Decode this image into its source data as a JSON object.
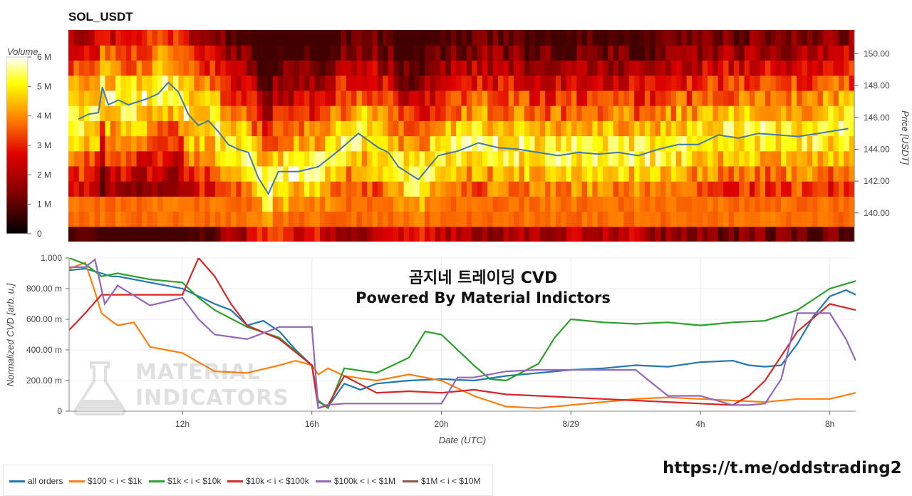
{
  "title": "SOL_USDT",
  "overlay": {
    "line1": "곰지네 트레이딩 CVD",
    "line2": "Powered By Material Indictors"
  },
  "watermark": {
    "line1": "MATERIAL",
    "line2": "INDICATORS"
  },
  "url": "https://t.me/oddstrading2",
  "colorbar": {
    "label": "Volume",
    "ticks": [
      "0",
      "1 M",
      "2 M",
      "3 M",
      "4 M",
      "5 M",
      "6 M"
    ],
    "range": [
      0,
      6
    ]
  },
  "colors": {
    "all_orders": "#1f77b4",
    "r100_1k": "#ff7f0e",
    "r1k_10k": "#2ca02c",
    "r10k_100k": "#d62728",
    "r100k_1m": "#9467bd",
    "r1m_10m": "#8c564b"
  },
  "legend": [
    {
      "key": "all_orders",
      "label": "all orders"
    },
    {
      "key": "r100_1k",
      "label": "$100 < i < $1k"
    },
    {
      "key": "r1k_10k",
      "label": "$1k < i < $10k"
    },
    {
      "key": "r10k_100k",
      "label": "$10k < i < $100k"
    },
    {
      "key": "r100k_1m",
      "label": "$100k < i < $1M"
    },
    {
      "key": "r1m_10m",
      "label": "$1M < i < $10M"
    }
  ],
  "chart_data": [
    {
      "type": "heatmap",
      "title": "SOL_USDT",
      "ylabel": "Price [USDT]",
      "ylim": [
        138.2,
        151.5
      ],
      "yticks": [
        "140.00",
        "142.00",
        "144.00",
        "146.00",
        "148.00",
        "150.00"
      ],
      "ytick_values": [
        140,
        142,
        144,
        146,
        148,
        150
      ],
      "price_line": {
        "color": "#4477aa",
        "x_hours": [
          0,
          0.5,
          1,
          1.2,
          1.5,
          2,
          2.5,
          3,
          3.5,
          4,
          4.5,
          5,
          5.5,
          6,
          6.5,
          7,
          7.5,
          8,
          8.5,
          9,
          9.5,
          10,
          11,
          12,
          13,
          14,
          15,
          15.5,
          16,
          17,
          18,
          19,
          20,
          21,
          22,
          23,
          24,
          25,
          26,
          27,
          28,
          29,
          30,
          31,
          32,
          33,
          34,
          35,
          36,
          37,
          38,
          38.5
        ],
        "y": [
          145.9,
          146.2,
          146.3,
          147.9,
          146.8,
          147.1,
          146.8,
          147.0,
          147.2,
          147.5,
          148.2,
          147.6,
          146.2,
          145.5,
          145.8,
          145.1,
          144.3,
          144.0,
          143.8,
          142.2,
          141.2,
          142.6,
          142.6,
          142.9,
          143.9,
          145.0,
          144.1,
          143.8,
          142.9,
          142.1,
          143.6,
          143.9,
          144.4,
          144.1,
          144.0,
          143.8,
          143.6,
          143.8,
          143.7,
          143.8,
          143.6,
          144.0,
          144.3,
          144.3,
          144.9,
          144.7,
          145.0,
          144.9,
          144.8,
          145.0,
          145.2,
          145.3
        ]
      }
    },
    {
      "type": "line",
      "xlabel": "Date (UTC)",
      "ylabel": "Normalized CVD [arb. u.]",
      "ylim": [
        0,
        1000
      ],
      "yticks": [
        "0",
        "200.00 m",
        "400.00 m",
        "600.00 m",
        "800.00 m",
        "1.000"
      ],
      "ytick_values": [
        0,
        200,
        400,
        600,
        800,
        1000
      ],
      "xticks": [
        "12h",
        "16h",
        "20h",
        "8/29",
        "4h",
        "8h"
      ],
      "xtick_hours": [
        3,
        7,
        11,
        15,
        19,
        23
      ],
      "xlim_hours": [
        -0.5,
        23.8
      ],
      "series": [
        {
          "name": "all orders",
          "color_key": "all_orders",
          "x": [
            -0.5,
            0,
            0.5,
            0.8,
            1,
            1.5,
            2,
            3,
            4,
            4.5,
            5,
            5.5,
            6,
            6.5,
            7,
            7.2,
            7.5,
            8,
            8.5,
            9,
            10,
            11,
            12,
            13,
            14,
            15,
            16,
            17,
            18,
            19,
            20,
            20.5,
            21,
            21.5,
            22,
            22.5,
            23,
            23.5,
            23.8
          ],
          "y": [
            920,
            930,
            900,
            880,
            880,
            860,
            840,
            800,
            700,
            660,
            560,
            590,
            520,
            400,
            300,
            60,
            30,
            180,
            140,
            180,
            200,
            210,
            200,
            230,
            250,
            270,
            280,
            300,
            290,
            320,
            330,
            300,
            290,
            300,
            440,
            620,
            750,
            790,
            760
          ]
        },
        {
          "name": "$100 < i < $1k",
          "color_key": "r100_1k",
          "x": [
            -0.5,
            0,
            0.3,
            0.5,
            0.8,
            1,
            1.5,
            2,
            2.5,
            3,
            4,
            5,
            6,
            6.5,
            7,
            7.2,
            7.5,
            8,
            9,
            10,
            11,
            12,
            13,
            14,
            15,
            16,
            17,
            18,
            19,
            20,
            21,
            22,
            23,
            23.8
          ],
          "y": [
            930,
            970,
            780,
            640,
            590,
            560,
            580,
            420,
            400,
            380,
            260,
            250,
            300,
            330,
            300,
            240,
            280,
            230,
            200,
            240,
            200,
            100,
            30,
            20,
            40,
            60,
            80,
            90,
            80,
            70,
            60,
            80,
            80,
            120
          ]
        },
        {
          "name": "$1k < i < $10k",
          "color_key": "r1k_10k",
          "x": [
            -0.5,
            0,
            0.5,
            1,
            2,
            3,
            3.5,
            4,
            5,
            6,
            7,
            7.2,
            7.5,
            8,
            9,
            10,
            10.5,
            11,
            12,
            12.5,
            13,
            14,
            14.5,
            15,
            16,
            17,
            18,
            19,
            20,
            21,
            22,
            23,
            23.8
          ],
          "y": [
            1000,
            960,
            880,
            900,
            860,
            840,
            740,
            660,
            550,
            480,
            300,
            70,
            20,
            280,
            250,
            350,
            520,
            500,
            300,
            210,
            200,
            310,
            480,
            600,
            580,
            570,
            580,
            560,
            580,
            590,
            660,
            800,
            850
          ]
        },
        {
          "name": "$10k < i < $100k",
          "color_key": "r10k_100k",
          "x": [
            -0.5,
            0,
            0.5,
            1,
            2,
            3,
            3.5,
            4,
            4.5,
            5,
            6,
            7,
            7.2,
            7.5,
            8,
            9,
            10,
            11,
            12,
            13,
            14,
            15,
            16,
            17,
            18,
            19,
            20,
            20.5,
            21,
            22,
            23,
            23.8
          ],
          "y": [
            530,
            640,
            760,
            760,
            760,
            760,
            1000,
            880,
            700,
            560,
            470,
            300,
            20,
            40,
            230,
            120,
            130,
            120,
            140,
            110,
            100,
            90,
            80,
            70,
            60,
            50,
            40,
            100,
            200,
            520,
            700,
            660
          ]
        },
        {
          "name": "$100k < i < $1M",
          "color_key": "r100k_1m",
          "x": [
            -0.5,
            0,
            0.3,
            0.6,
            1,
            2,
            3,
            3.5,
            4,
            5,
            6,
            7,
            7.2,
            7.4,
            8,
            9,
            10,
            11,
            11.5,
            12,
            13,
            14,
            15,
            16,
            17,
            18,
            19,
            20,
            20.5,
            21,
            21.5,
            22,
            23,
            23.5,
            23.8
          ],
          "y": [
            940,
            940,
            990,
            700,
            820,
            690,
            740,
            600,
            500,
            470,
            550,
            550,
            20,
            40,
            50,
            50,
            50,
            50,
            220,
            220,
            260,
            270,
            270,
            270,
            270,
            100,
            100,
            40,
            40,
            50,
            210,
            640,
            640,
            470,
            330
          ]
        },
        {
          "name": "$1M < i < $10M",
          "color_key": "r1m_10m",
          "x": [],
          "y": []
        }
      ]
    }
  ]
}
